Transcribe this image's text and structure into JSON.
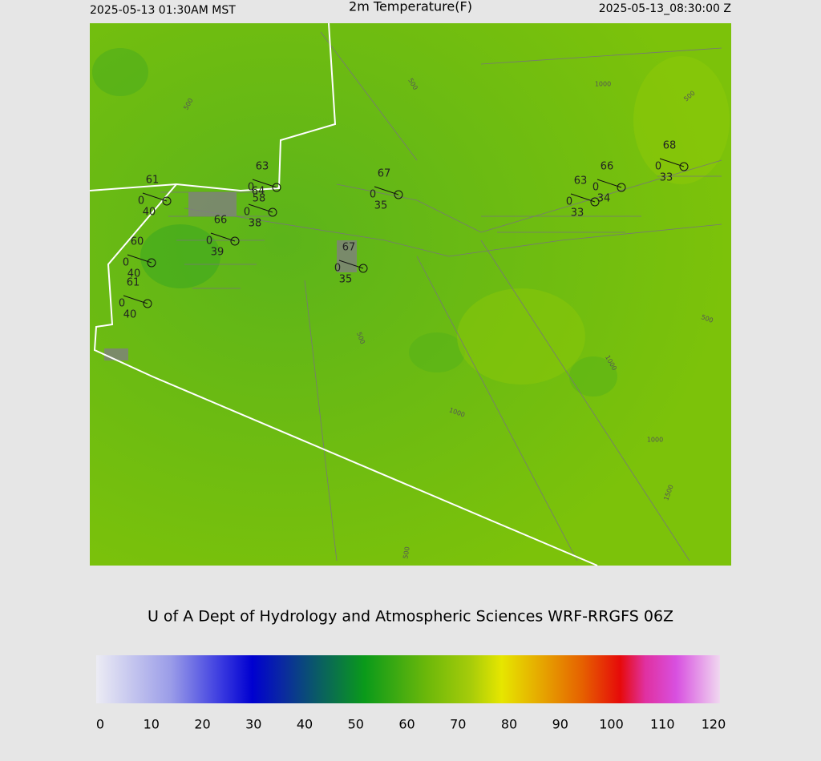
{
  "header": {
    "left": "2025-05-13 01:30AM MST",
    "title": "2m Temperature(F)",
    "right": "2025-05-13_08:30:00 Z"
  },
  "map": {
    "stations": [
      {
        "temp": "61",
        "calm": "0",
        "dew": "40"
      },
      {
        "temp": "63",
        "calm": "0",
        "dew": "58"
      },
      {
        "temp": "64",
        "calm": "0",
        "dew": "38"
      },
      {
        "temp": "66",
        "calm": "0",
        "dew": "39"
      },
      {
        "temp": "67",
        "calm": "0",
        "dew": "35"
      },
      {
        "temp": "67",
        "calm": "0",
        "dew": "35"
      },
      {
        "temp": "60",
        "calm": "0",
        "dew": "40"
      },
      {
        "temp": "61",
        "calm": "0",
        "dew": "40"
      },
      {
        "temp": "66",
        "calm": "0",
        "dew": "34"
      },
      {
        "temp": "63",
        "calm": "0",
        "dew": "33"
      },
      {
        "temp": "68",
        "calm": "0",
        "dew": "33"
      }
    ],
    "contour_labels": [
      "500",
      "500",
      "1000",
      "500",
      "500",
      "500",
      "1000",
      "1000",
      "1000",
      "1500",
      "500"
    ]
  },
  "credit": "U of A Dept of Hydrology and Atmospheric Sciences WRF-RRGFS 06Z",
  "colorbar": {
    "ticks": [
      "0",
      "10",
      "20",
      "30",
      "40",
      "50",
      "60",
      "70",
      "80",
      "90",
      "100",
      "110",
      "120"
    ]
  }
}
